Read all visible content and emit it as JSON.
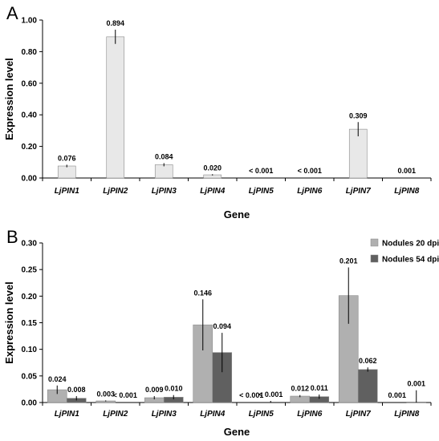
{
  "chart_data": [
    {
      "panel": "A",
      "type": "bar",
      "categories": [
        "LjPIN1",
        "LjPIN2",
        "LjPIN3",
        "LjPIN4",
        "LjPIN5",
        "LjPIN6",
        "LjPIN7",
        "LjPIN8"
      ],
      "series": [
        {
          "values": [
            0.076,
            0.894,
            0.084,
            0.02,
            0.0,
            0.0,
            0.309,
            0.001
          ],
          "errors": [
            0.008,
            0.045,
            0.01,
            0.004,
            0.0,
            0.0,
            0.045,
            0.0
          ],
          "labels": [
            "0.076",
            "0.894",
            "0.084",
            "0.020",
            "< 0.001",
            "< 0.001",
            "0.309",
            "0.001"
          ],
          "color": "#e8e8e8"
        }
      ],
      "xlabel": "Gene",
      "ylabel": "Expression level",
      "ylim": [
        0,
        1.0
      ],
      "yticks": [
        "0.00",
        "0.20",
        "0.40",
        "0.60",
        "0.80",
        "1.00"
      ],
      "grid": false
    },
    {
      "panel": "B",
      "type": "bar",
      "categories": [
        "LjPIN1",
        "LjPIN2",
        "LjPIN3",
        "LjPIN4",
        "LjPIN5",
        "LjPIN6",
        "LjPIN7",
        "LjPIN8"
      ],
      "series": [
        {
          "name": "Nodules 20 dpi",
          "values": [
            0.024,
            0.003,
            0.009,
            0.146,
            0.0,
            0.012,
            0.201,
            0.0
          ],
          "errors": [
            0.008,
            0.001,
            0.003,
            0.048,
            0.0,
            0.002,
            0.053,
            0.0
          ],
          "labels": [
            "0.024",
            "0.003",
            "0.009",
            "0.146",
            "< 0.001",
            "0.012",
            "0.201",
            "0.001"
          ],
          "color": "#b0b0b0"
        },
        {
          "name": "Nodules 54 dpi",
          "values": [
            0.008,
            0.0,
            0.01,
            0.094,
            0.0,
            0.011,
            0.062,
            0.001
          ],
          "errors": [
            0.004,
            0.0,
            0.004,
            0.037,
            0.003,
            0.004,
            0.004,
            0.022
          ],
          "labels": [
            "0.008",
            "< 0.001",
            "0.010",
            "0.094",
            "< 0.001",
            "0.011",
            "0.062",
            "0.001"
          ],
          "color": "#606060"
        }
      ],
      "xlabel": "Gene",
      "ylabel": "Expression level",
      "ylim": [
        0,
        0.3
      ],
      "yticks": [
        "0.00",
        "0.05",
        "0.10",
        "0.15",
        "0.20",
        "0.25",
        "0.30"
      ],
      "legend": "top-right",
      "grid": false
    }
  ]
}
